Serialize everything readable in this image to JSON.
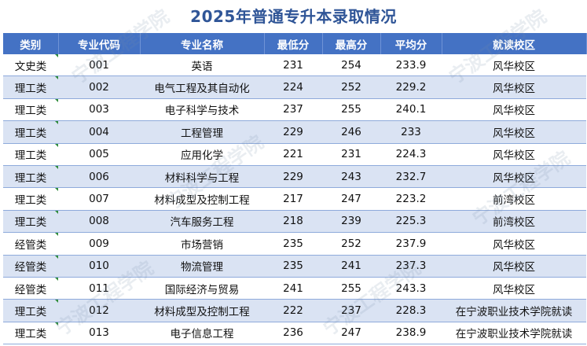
{
  "title": "2025年普通专升本录取情况",
  "columns": [
    "类别",
    "专业代码",
    "专业名称",
    "最低分",
    "最高分",
    "平均分",
    "就读校区"
  ],
  "rows": [
    [
      "文史类",
      "001",
      "英语",
      "231",
      "254",
      "233.9",
      "风华校区"
    ],
    [
      "理工类",
      "002",
      "电气工程及其自动化",
      "224",
      "252",
      "229.2",
      "风华校区"
    ],
    [
      "理工类",
      "003",
      "电子科学与技术",
      "237",
      "255",
      "240.1",
      "风华校区"
    ],
    [
      "理工类",
      "004",
      "工程管理",
      "229",
      "246",
      "233",
      "风华校区"
    ],
    [
      "理工类",
      "005",
      "应用化学",
      "221",
      "231",
      "224.3",
      "风华校区"
    ],
    [
      "理工类",
      "006",
      "材料科学与工程",
      "229",
      "243",
      "232.7",
      "风华校区"
    ],
    [
      "理工类",
      "007",
      "材料成型及控制工程",
      "217",
      "247",
      "223.2",
      "前湾校区"
    ],
    [
      "理工类",
      "008",
      "汽车服务工程",
      "218",
      "239",
      "225.3",
      "前湾校区"
    ],
    [
      "经管类",
      "009",
      "市场营销",
      "235",
      "252",
      "237.9",
      "风华校区"
    ],
    [
      "经管类",
      "010",
      "物流管理",
      "235",
      "241",
      "237.3",
      "风华校区"
    ],
    [
      "经管类",
      "011",
      "国际经济与贸易",
      "241",
      "255",
      "243.3",
      "风华校区"
    ],
    [
      "理工类",
      "012",
      "材料成型及控制工程",
      "222",
      "237",
      "228.3",
      "在宁波职业技术学院就读"
    ],
    [
      "理工类",
      "013",
      "电子信息工程",
      "236",
      "247",
      "238.9",
      "在宁波职业技术学院就读"
    ]
  ],
  "watermark": "宁波工程学院"
}
